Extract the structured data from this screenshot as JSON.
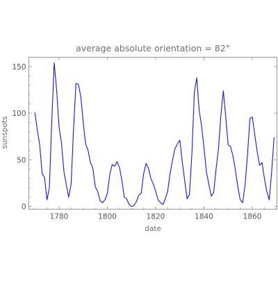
{
  "chart_data": {
    "type": "line",
    "title": "average absolute orientation = 82°",
    "xlabel": "date",
    "ylabel": "sunspots",
    "xlim": [
      1767.5,
      1870.2
    ],
    "ylim": [
      -3,
      160
    ],
    "x_ticks": [
      1780,
      1800,
      1820,
      1840,
      1860
    ],
    "y_ticks": [
      0,
      50,
      100,
      150
    ],
    "grid": false,
    "series": [
      {
        "color": "#1414ff",
        "x": [
          1770,
          1771,
          1772,
          1773,
          1774,
          1775,
          1776,
          1777,
          1778,
          1779,
          1780,
          1781,
          1782,
          1783,
          1784,
          1785,
          1786,
          1787,
          1788,
          1789,
          1790,
          1791,
          1792,
          1793,
          1794,
          1795,
          1796,
          1797,
          1798,
          1799,
          1800,
          1801,
          1802,
          1803,
          1804,
          1805,
          1806,
          1807,
          1808,
          1809,
          1810,
          1811,
          1812,
          1813,
          1814,
          1815,
          1816,
          1817,
          1818,
          1819,
          1820,
          1821,
          1822,
          1823,
          1824,
          1825,
          1826,
          1827,
          1828,
          1829,
          1830,
          1831,
          1832,
          1833,
          1834,
          1835,
          1836,
          1837,
          1838,
          1839,
          1840,
          1841,
          1842,
          1843,
          1844,
          1845,
          1846,
          1847,
          1848,
          1849,
          1850,
          1851,
          1852,
          1853,
          1854,
          1855,
          1856,
          1857,
          1858,
          1859,
          1860,
          1861,
          1862,
          1863,
          1864,
          1865,
          1866,
          1867,
          1868,
          1869
        ],
        "values": [
          101,
          82,
          66,
          35,
          31,
          7,
          20,
          92,
          154,
          125,
          85,
          68,
          38,
          23,
          10,
          24,
          83,
          132,
          131,
          118,
          90,
          67,
          60,
          47,
          41,
          21,
          16,
          6,
          4,
          7,
          14,
          34,
          45,
          43,
          48,
          42,
          28,
          10,
          8,
          2,
          0,
          1,
          5,
          12,
          14,
          35,
          46,
          41,
          30,
          24,
          16,
          7,
          4,
          2,
          8,
          17,
          36,
          50,
          62,
          67,
          71,
          48,
          28,
          8,
          13,
          57,
          122,
          138,
          103,
          86,
          63,
          37,
          24,
          11,
          15,
          40,
          62,
          98,
          124,
          96,
          66,
          64,
          54,
          39,
          21,
          7,
          4,
          23,
          55,
          94,
          96,
          77,
          59,
          44,
          47,
          30,
          16,
          7,
          37,
          74
        ]
      }
    ]
  }
}
